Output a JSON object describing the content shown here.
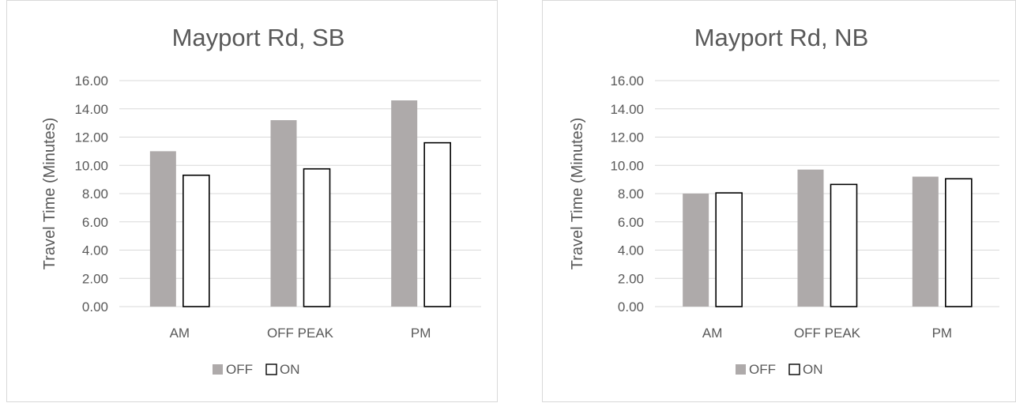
{
  "colors": {
    "off": "#aeaaaa",
    "on": "#ffffff",
    "on_stroke": "#000000",
    "grid": "#d9d9d9",
    "text": "#595959"
  },
  "chart_data": [
    {
      "type": "bar",
      "title": "Mayport Rd, SB",
      "xlabel": "",
      "ylabel": "Travel Time (Minutes)",
      "categories": [
        "AM",
        "OFF PEAK",
        "PM"
      ],
      "ylim": [
        0,
        16
      ],
      "yticks": [
        "0.00",
        "2.00",
        "4.00",
        "6.00",
        "8.00",
        "10.00",
        "12.00",
        "14.00",
        "16.00"
      ],
      "grid": true,
      "legend": "bottom",
      "series": [
        {
          "name": "OFF",
          "values": [
            11.0,
            13.2,
            14.6
          ]
        },
        {
          "name": "ON",
          "values": [
            9.3,
            9.75,
            11.6
          ]
        }
      ]
    },
    {
      "type": "bar",
      "title": "Mayport Rd, NB",
      "xlabel": "",
      "ylabel": "Travel Time (Minutes)",
      "categories": [
        "AM",
        "OFF PEAK",
        "PM"
      ],
      "ylim": [
        0,
        16
      ],
      "yticks": [
        "0.00",
        "2.00",
        "4.00",
        "6.00",
        "8.00",
        "10.00",
        "12.00",
        "14.00",
        "16.00"
      ],
      "grid": true,
      "legend": "bottom",
      "series": [
        {
          "name": "OFF",
          "values": [
            8.0,
            9.7,
            9.2
          ]
        },
        {
          "name": "ON",
          "values": [
            8.05,
            8.65,
            9.05
          ]
        }
      ]
    }
  ]
}
